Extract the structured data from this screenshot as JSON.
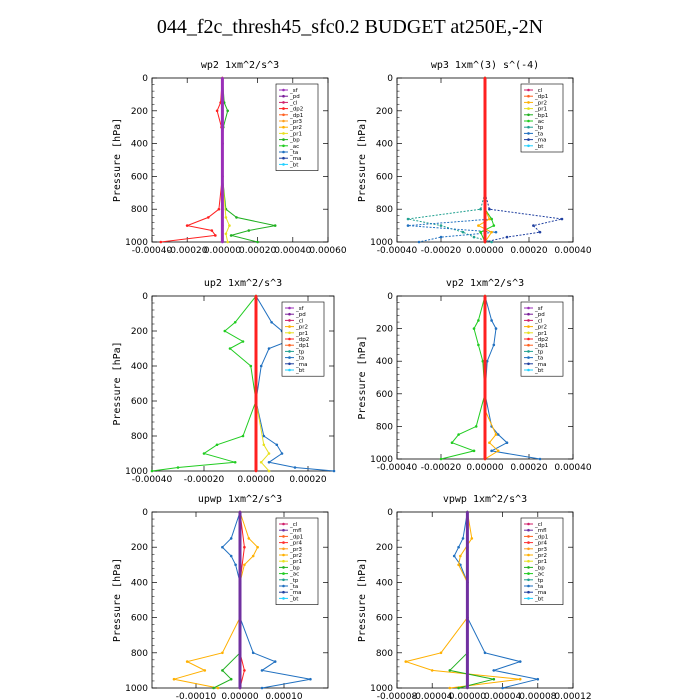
{
  "title": "044_f2c_thresh45_sfc0.2  BUDGET at250E,-2N",
  "colors": {
    "sf": "#9a2fb8",
    "pd": "#7a1f9a",
    "cl": "#d0206a",
    "dp2": "#ff2020",
    "dp1": "#ff6020",
    "pr3": "#ffa020",
    "pr2": "#ffb000",
    "pr1": "#e8e020",
    "bp": "#20b020",
    "ac": "#20cc20",
    "tp": "#20a090",
    "ta": "#2070c0",
    "ma": "#2040a0",
    "bt": "#20d0ff",
    "mfl": "#7030a0",
    "pr4": "#ff3030"
  },
  "chart_data": [
    {
      "type": "line",
      "title": "wp2   1xm^2/s^3",
      "ylabel": "Pressure [hPa]",
      "xlim": [
        -0.0004,
        0.0006
      ],
      "ylim": [
        1000,
        0
      ],
      "xticks": [
        "-0.00040",
        "-0.00020",
        "0.00000",
        "0.00020",
        "0.00040",
        "0.00060"
      ],
      "yticks": [
        "0",
        "200",
        "400",
        "600",
        "800",
        "1000"
      ],
      "legend": [
        "_sf",
        "_pd",
        "_cl",
        "_dp2",
        "_dp1",
        "_pr3",
        "_pr2",
        "_pr1",
        "_bp",
        "_ac",
        "_ta",
        "_ma",
        "_bt"
      ],
      "series": [
        {
          "name": "_bp",
          "key": "bp",
          "p": [
            0,
            150,
            200,
            300,
            400,
            600,
            800,
            850,
            900,
            930,
            960,
            1000
          ],
          "x": [
            0,
            1e-05,
            3e-05,
            5e-06,
            0,
            0,
            2e-05,
            8e-05,
            0.0003,
            0.00015,
            5e-05,
            0.0002
          ]
        },
        {
          "name": "_dp2",
          "key": "dp2",
          "p": [
            0,
            150,
            200,
            300,
            400,
            600,
            800,
            850,
            900,
            930,
            960,
            1000
          ],
          "x": [
            0,
            -1e-05,
            -3e-05,
            -5e-06,
            0,
            0,
            -2e-05,
            -8e-05,
            -0.0002,
            -6e-05,
            -4e-05,
            -0.00035
          ]
        },
        {
          "name": "_pr1",
          "key": "pr1",
          "p": [
            0,
            600,
            850,
            900,
            950,
            1000
          ],
          "x": [
            0,
            0,
            2e-05,
            4e-05,
            2e-05,
            3e-05
          ]
        },
        {
          "name": "_sf",
          "key": "sf",
          "p": [
            0,
            200,
            400,
            600,
            800,
            900,
            1000
          ],
          "x": [
            0,
            0,
            0,
            0,
            0,
            0,
            0
          ]
        }
      ]
    },
    {
      "type": "line",
      "title": "wp3   1xm^(3) s^(-4)",
      "ylabel": "Pressure [hPa]",
      "xlim": [
        -0.0004,
        0.0004
      ],
      "ylim": [
        1000,
        0
      ],
      "xticks": [
        "-0.00040",
        "-0.00020",
        "0.00000",
        "0.00020",
        "0.00040"
      ],
      "yticks": [
        "0",
        "200",
        "400",
        "600",
        "800",
        "1000"
      ],
      "legend": [
        "_cl",
        "_dp1",
        "_pr2",
        "_pr1",
        "_bp1",
        "_ac",
        "_tp",
        "_ta",
        "_ma",
        "_bt"
      ],
      "series": [
        {
          "name": "_tp",
          "key": "tp",
          "p": [
            0,
            700,
            800,
            860,
            900,
            940,
            970,
            1000
          ],
          "x": [
            0,
            0,
            -2e-05,
            -0.00035,
            -0.0002,
            -0.0001,
            -5e-05,
            3e-05
          ],
          "dash": true
        },
        {
          "name": "_ma",
          "key": "ma",
          "p": [
            0,
            700,
            800,
            860,
            900,
            940,
            970,
            1000
          ],
          "x": [
            0,
            0,
            2e-05,
            0.00035,
            0.00022,
            0.00025,
            0.0001,
            0
          ],
          "dash": true
        },
        {
          "name": "_ta",
          "key": "ta",
          "p": [
            0,
            800,
            860,
            900,
            940,
            970,
            1000
          ],
          "x": [
            0,
            0,
            3e-05,
            -0.00035,
            5e-05,
            -0.0002,
            -0.0003
          ],
          "dash": true
        },
        {
          "name": "_ac",
          "key": "ac",
          "p": [
            0,
            800,
            860,
            900,
            940,
            1000
          ],
          "x": [
            0,
            0,
            3e-05,
            4e-05,
            -2e-05,
            0
          ],
          "dash": false
        },
        {
          "name": "_pr2",
          "key": "pr2",
          "p": [
            0,
            800,
            860,
            900,
            940,
            1000
          ],
          "x": [
            0,
            0,
            2e-05,
            -3e-05,
            3e-05,
            0
          ]
        },
        {
          "name": "_cl",
          "key": "dp2",
          "p": [
            0,
            200,
            400,
            600,
            800,
            1000
          ],
          "x": [
            0,
            0,
            0,
            0,
            0,
            0
          ]
        }
      ]
    },
    {
      "type": "line",
      "title": "up2   1xm^2/s^3",
      "ylabel": "Pressure [hPa]",
      "xlim": [
        -0.0004,
        0.0003
      ],
      "ylim": [
        1000,
        0
      ],
      "xticks": [
        "-0.00040",
        "-0.00020",
        "0.00000",
        "0.00020"
      ],
      "yticks": [
        "0",
        "200",
        "400",
        "600",
        "800",
        "1000"
      ],
      "legend": [
        "_sf",
        "_pd",
        "_cl",
        "_pr2",
        "_pr1",
        "_dp2",
        "_dp1",
        "_tp",
        "_ta",
        "_ma",
        "_bt"
      ],
      "series": [
        {
          "name": "_dp1",
          "key": "ac",
          "p": [
            0,
            150,
            200,
            260,
            300,
            400,
            600,
            800,
            850,
            900,
            950,
            980,
            1000
          ],
          "x": [
            0,
            -8e-05,
            -0.00012,
            -5e-05,
            -0.0001,
            -2e-05,
            0,
            -5e-05,
            -0.00015,
            -0.0002,
            -8e-05,
            -0.0003,
            -0.0004
          ]
        },
        {
          "name": "_ta",
          "key": "ta",
          "p": [
            0,
            150,
            200,
            260,
            300,
            400,
            600,
            800,
            850,
            900,
            950,
            980,
            1000
          ],
          "x": [
            0,
            6e-05,
            0.0001,
            0.00012,
            5e-05,
            2e-05,
            0,
            3e-05,
            8e-05,
            0.0001,
            5e-05,
            0.00015,
            0.0003
          ]
        },
        {
          "name": "_pr1",
          "key": "pr1",
          "p": [
            0,
            600,
            850,
            900,
            950,
            1000
          ],
          "x": [
            0,
            0,
            3e-05,
            5e-05,
            2e-05,
            5e-05
          ]
        },
        {
          "name": "_sf",
          "key": "dp2",
          "p": [
            0,
            200,
            400,
            600,
            800,
            1000
          ],
          "x": [
            0,
            0,
            0,
            0,
            0,
            0
          ]
        }
      ]
    },
    {
      "type": "line",
      "title": "vp2   1xm^2/s^3",
      "ylabel": "Pressure [hPa]",
      "xlim": [
        -0.0004,
        0.0004
      ],
      "ylim": [
        1000,
        0
      ],
      "xticks": [
        "-0.00040",
        "-0.00020",
        "0.00000",
        "0.00020",
        "0.00040"
      ],
      "yticks": [
        "0",
        "200",
        "400",
        "600",
        "800",
        "1000"
      ],
      "legend": [
        "_sf",
        "_pd",
        "_cl",
        "_pr2",
        "_pr1",
        "_dp2",
        "_dp1",
        "_tp",
        "_ta",
        "_ma",
        "_bt"
      ],
      "series": [
        {
          "name": "_dp1",
          "key": "ac",
          "p": [
            0,
            150,
            200,
            300,
            400,
            600,
            800,
            850,
            900,
            950,
            1000
          ],
          "x": [
            0,
            -3e-05,
            -5e-05,
            -3e-05,
            -1e-05,
            0,
            -4e-05,
            -0.00012,
            -0.00015,
            -5e-05,
            -0.0002
          ]
        },
        {
          "name": "_ta",
          "key": "ta",
          "p": [
            0,
            150,
            200,
            300,
            400,
            600,
            800,
            850,
            900,
            950,
            1000
          ],
          "x": [
            0,
            3e-05,
            5e-05,
            4e-05,
            1e-05,
            0,
            3e-05,
            6e-05,
            0.0001,
            3e-05,
            0.00025
          ]
        },
        {
          "name": "_pr2",
          "key": "pr2",
          "p": [
            0,
            700,
            850,
            900,
            950,
            1000
          ],
          "x": [
            0,
            0,
            5e-05,
            2e-05,
            6e-05,
            0
          ]
        },
        {
          "name": "_sf",
          "key": "dp2",
          "p": [
            0,
            200,
            400,
            600,
            800,
            1000
          ],
          "x": [
            0,
            0,
            0,
            0,
            0,
            0
          ]
        }
      ]
    },
    {
      "type": "line",
      "title": "upwp   1xm^2/s^3",
      "ylabel": "Pressure [hPa]",
      "xlim": [
        -0.0002,
        0.0002
      ],
      "ylim": [
        1000,
        0
      ],
      "xticks": [
        "-0.00010",
        "0.00000",
        "0.00010"
      ],
      "yticks": [
        "0",
        "200",
        "400",
        "600",
        "800",
        "1000"
      ],
      "legend": [
        "_cl",
        "_mfl",
        "_dp1",
        "_pr4",
        "_pr3",
        "_pr2",
        "_pr1",
        "_bp",
        "_ac",
        "_tp",
        "_ta",
        "_ma",
        "_bt"
      ],
      "series": [
        {
          "name": "_pr2",
          "key": "pr2",
          "p": [
            0,
            150,
            200,
            250,
            300,
            400,
            600,
            800,
            850,
            900,
            950,
            1000
          ],
          "x": [
            0,
            2e-05,
            4e-05,
            3e-05,
            1e-05,
            0,
            0,
            -4e-05,
            -0.00012,
            -8e-05,
            -0.00015,
            -5e-05
          ]
        },
        {
          "name": "_ta",
          "key": "ta",
          "p": [
            0,
            150,
            200,
            250,
            300,
            400,
            600,
            800,
            850,
            900,
            950,
            1000
          ],
          "x": [
            0,
            -2e-05,
            -4e-05,
            -2e-05,
            -1e-05,
            0,
            0,
            3e-05,
            8e-05,
            5e-05,
            0.00016,
            5e-05
          ]
        },
        {
          "name": "_bp",
          "key": "bp",
          "p": [
            0,
            800,
            900,
            950,
            1000
          ],
          "x": [
            0,
            0,
            -4e-05,
            -2e-05,
            -6e-05
          ]
        },
        {
          "name": "_pr3",
          "key": "dp2",
          "p": [
            0,
            200,
            400,
            600,
            800,
            900,
            1000
          ],
          "x": [
            0,
            1e-05,
            0,
            0,
            0,
            1e-05,
            0
          ]
        },
        {
          "name": "_cl",
          "key": "mfl",
          "p": [
            0,
            200,
            400,
            600,
            800,
            1000
          ],
          "x": [
            0,
            0,
            0,
            0,
            0,
            0
          ]
        }
      ]
    },
    {
      "type": "line",
      "title": "vpwp   1xm^2/s^3",
      "ylabel": "Pressure [hPa]",
      "xlim": [
        -8e-05,
        0.00012
      ],
      "ylim": [
        1000,
        0
      ],
      "xticks": [
        "-0.00008",
        "-0.00004",
        "0.00000",
        "0.00004",
        "0.00008",
        "0.00012"
      ],
      "yticks": [
        "0",
        "200",
        "400",
        "600",
        "800",
        "1000"
      ],
      "legend": [
        "_cl",
        "_mfl",
        "_dp1",
        "_pr4",
        "_pr3",
        "_pr2",
        "_pr1",
        "_bp",
        "_ac",
        "_tp",
        "_ta",
        "_ma",
        "_bt"
      ],
      "series": [
        {
          "name": "_ta",
          "key": "ta",
          "p": [
            0,
            150,
            200,
            250,
            300,
            400,
            600,
            800,
            850,
            900,
            950,
            1000
          ],
          "x": [
            0,
            -5e-06,
            -1e-05,
            -1.5e-05,
            -8e-06,
            0,
            0,
            2e-05,
            6e-05,
            3e-05,
            8e-05,
            4e-05
          ]
        },
        {
          "name": "_pr2",
          "key": "pr2",
          "p": [
            0,
            150,
            250,
            300,
            400,
            600,
            800,
            850,
            900,
            950,
            1000
          ],
          "x": [
            0,
            5e-06,
            -8e-06,
            -1e-05,
            0,
            0,
            -3e-05,
            -7e-05,
            -4e-05,
            6e-05,
            -2e-05
          ]
        },
        {
          "name": "_bp",
          "key": "bp",
          "p": [
            0,
            800,
            900,
            950,
            1000
          ],
          "x": [
            0,
            0,
            -2e-05,
            3e-05,
            -1e-05
          ]
        },
        {
          "name": "_cl",
          "key": "mfl",
          "p": [
            0,
            200,
            400,
            600,
            800,
            1000
          ],
          "x": [
            0,
            0,
            0,
            0,
            0,
            0
          ]
        }
      ]
    }
  ]
}
